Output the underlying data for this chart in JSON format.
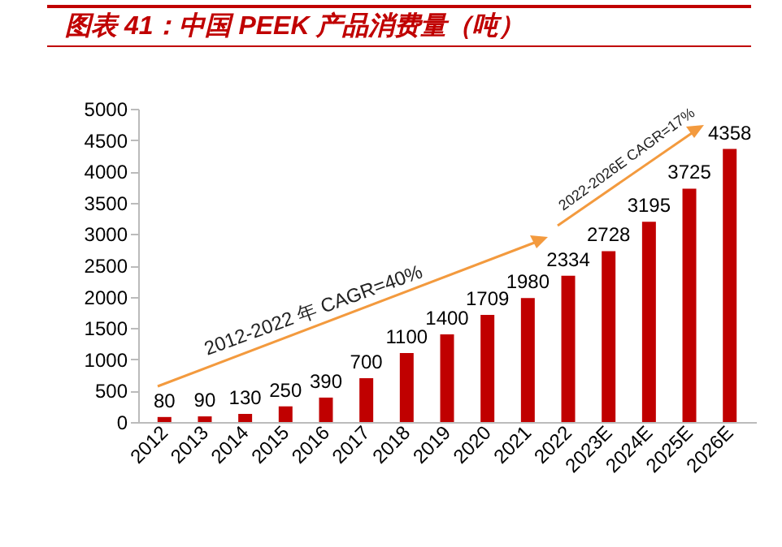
{
  "chart_data": {
    "type": "bar",
    "title": "图表 41：中国 PEEK 产品消费量（吨）",
    "categories": [
      "2012",
      "2013",
      "2014",
      "2015",
      "2016",
      "2017",
      "2018",
      "2019",
      "2020",
      "2021",
      "2022",
      "2023E",
      "2024E",
      "2025E",
      "2026E"
    ],
    "values": [
      80,
      90,
      130,
      250,
      390,
      700,
      1100,
      1400,
      1709,
      1980,
      2334,
      2728,
      3195,
      3725,
      4358
    ],
    "color": "#c00000",
    "ylim": [
      0,
      5000
    ],
    "yticks": [
      0,
      500,
      1000,
      1500,
      2000,
      2500,
      3000,
      3500,
      4000,
      4500,
      5000
    ],
    "grid": false,
    "data_labels": true,
    "annotations": [
      "2012-2022 年 CAGR=40%",
      "2022-2026E CAGR=17%"
    ]
  }
}
